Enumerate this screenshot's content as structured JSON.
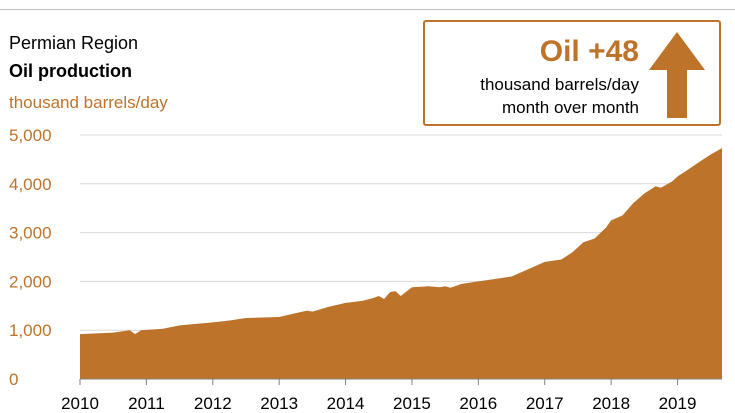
{
  "header": {
    "region": "Permian Region",
    "title": "Oil production",
    "units": "thousand barrels/day"
  },
  "callout": {
    "headline": "Oil +48",
    "line1": "thousand barrels/day",
    "line2": "month over month",
    "icon": "up-arrow-icon"
  },
  "colors": {
    "accent": "#bd732a",
    "grid": "#d9d9d9",
    "axis": "#7f7f7f"
  },
  "chart_data": {
    "type": "area",
    "title": "Oil production",
    "ylabel": "thousand barrels/day",
    "ylim": [
      0,
      5000
    ],
    "yticks": [
      0,
      1000,
      2000,
      3000,
      4000,
      5000
    ],
    "ytick_labels": [
      "0",
      "1,000",
      "2,000",
      "3,000",
      "4,000",
      "5,000"
    ],
    "xlim": [
      2010.0,
      2019.67
    ],
    "xticks": [
      "2010",
      "2011",
      "2012",
      "2013",
      "2014",
      "2015",
      "2016",
      "2017",
      "2018",
      "2019"
    ],
    "grid": true,
    "series": [
      {
        "values_x": [
          2010.0,
          2010.5,
          2010.75,
          2010.83,
          2010.92,
          2011.25,
          2011.5,
          2012.0,
          2012.25,
          2012.5,
          2013.0,
          2013.25,
          2013.42,
          2013.5,
          2013.75,
          2014.0,
          2014.25,
          2014.42,
          2014.5,
          2014.58,
          2014.67,
          2014.75,
          2014.83,
          2015.0,
          2015.25,
          2015.42,
          2015.5,
          2015.58,
          2015.75,
          2016.0,
          2016.25,
          2016.5,
          2016.75,
          2017.0,
          2017.25,
          2017.42,
          2017.58,
          2017.75,
          2017.92,
          2018.0,
          2018.17,
          2018.33,
          2018.5,
          2018.67,
          2018.75,
          2018.92,
          2019.0,
          2019.17,
          2019.33,
          2019.5,
          2019.67
        ],
        "values_y": [
          920,
          950,
          1000,
          920,
          1000,
          1030,
          1100,
          1160,
          1200,
          1250,
          1270,
          1350,
          1400,
          1380,
          1480,
          1560,
          1600,
          1660,
          1700,
          1640,
          1780,
          1800,
          1700,
          1880,
          1900,
          1880,
          1900,
          1870,
          1950,
          2000,
          2050,
          2100,
          2250,
          2400,
          2450,
          2600,
          2800,
          2880,
          3100,
          3250,
          3350,
          3600,
          3800,
          3950,
          3920,
          4050,
          4150,
          4300,
          4450,
          4600,
          4730
        ]
      }
    ]
  }
}
